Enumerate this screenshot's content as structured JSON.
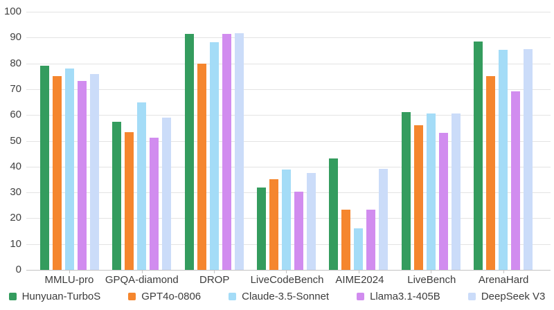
{
  "chart_data": {
    "type": "bar",
    "title": "",
    "xlabel": "",
    "ylabel": "",
    "ylim": [
      0,
      100
    ],
    "yticks": [
      0,
      10,
      20,
      30,
      40,
      50,
      60,
      70,
      80,
      90,
      100
    ],
    "grid": true,
    "legend_position": "bottom",
    "categories": [
      "MMLU-pro",
      "GPQA-diamond",
      "DROP",
      "LiveCodeBench",
      "AIME2024",
      "LiveBench",
      "ArenaHard"
    ],
    "series": [
      {
        "name": "Hunyuan-TurboS",
        "color": "#349C5E",
        "values": [
          79.0,
          57.5,
          91.5,
          32.0,
          43.3,
          61.0,
          88.6
        ]
      },
      {
        "name": "GPT4o-0806",
        "color": "#F5862E",
        "values": [
          75.0,
          53.3,
          79.8,
          35.0,
          23.3,
          56.0,
          75.0
        ]
      },
      {
        "name": "Claude-3.5-Sonnet",
        "color": "#A4DCF7",
        "values": [
          78.0,
          65.0,
          88.3,
          38.8,
          16.0,
          60.5,
          85.2
        ]
      },
      {
        "name": "Llama3.1-405B",
        "color": "#D18CEF",
        "values": [
          73.3,
          51.1,
          91.3,
          30.3,
          23.3,
          53.0,
          69.3
        ]
      },
      {
        "name": "DeepSeek V3",
        "color": "#CBDCF9",
        "values": [
          75.9,
          59.1,
          91.6,
          37.5,
          39.2,
          60.5,
          85.5
        ]
      }
    ],
    "colors": {
      "gridline": "#e3e3e3",
      "axis_line": "#c2c2c2",
      "tick_text": "#404040",
      "label_text": "#3c3c3c",
      "background": "#ffffff"
    }
  }
}
